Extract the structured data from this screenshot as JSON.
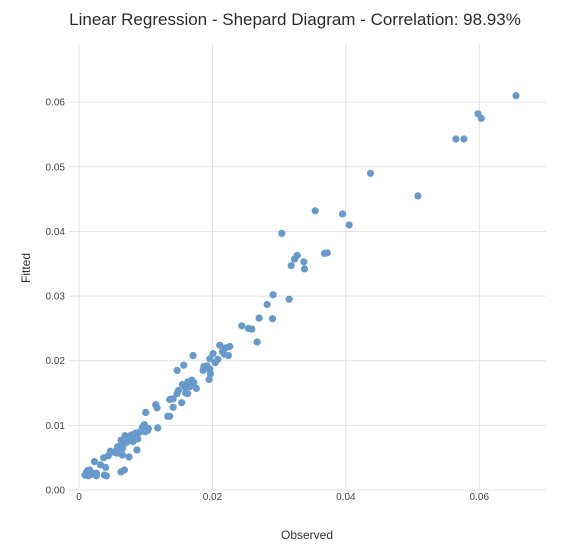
{
  "chart_data": {
    "type": "scatter",
    "title": "Linear Regression - Shepard Diagram - Correlation: 98.93%",
    "xlabel": "Observed",
    "ylabel": "Fitted",
    "xlim": [
      -0.0015,
      0.07
    ],
    "ylim": [
      0,
      0.069
    ],
    "xticks": [
      0,
      0.02,
      0.04,
      0.06
    ],
    "xtick_labels": [
      "0",
      "0.02",
      "0.04",
      "0.06"
    ],
    "yticks": [
      0,
      0.01,
      0.02,
      0.03,
      0.04,
      0.05,
      0.06
    ],
    "ytick_labels": [
      "0.00",
      "0.01",
      "0.02",
      "0.03",
      "0.04",
      "0.05",
      "0.06"
    ],
    "grid": true,
    "marker_color": "#6699cc",
    "points": [
      [
        0.0655,
        0.061
      ],
      [
        0.0598,
        0.0582
      ],
      [
        0.0603,
        0.0575
      ],
      [
        0.0565,
        0.0543
      ],
      [
        0.0577,
        0.0543
      ],
      [
        0.0508,
        0.0455
      ],
      [
        0.0437,
        0.049
      ],
      [
        0.0354,
        0.0432
      ],
      [
        0.0395,
        0.0427
      ],
      [
        0.0405,
        0.041
      ],
      [
        0.0304,
        0.0397
      ],
      [
        0.0327,
        0.0363
      ],
      [
        0.0323,
        0.0357
      ],
      [
        0.0337,
        0.0353
      ],
      [
        0.0318,
        0.0347
      ],
      [
        0.0338,
        0.0342
      ],
      [
        0.0368,
        0.0366
      ],
      [
        0.0372,
        0.0367
      ],
      [
        0.0291,
        0.0302
      ],
      [
        0.0315,
        0.0295
      ],
      [
        0.0282,
        0.0287
      ],
      [
        0.027,
        0.0266
      ],
      [
        0.029,
        0.0265
      ],
      [
        0.0244,
        0.0254
      ],
      [
        0.0254,
        0.025
      ],
      [
        0.0259,
        0.0249
      ],
      [
        0.0267,
        0.0229
      ],
      [
        0.0211,
        0.0224
      ],
      [
        0.022,
        0.022
      ],
      [
        0.0226,
        0.0222
      ],
      [
        0.0215,
        0.0214
      ],
      [
        0.0218,
        0.021
      ],
      [
        0.0224,
        0.0208
      ],
      [
        0.0208,
        0.0202
      ],
      [
        0.0201,
        0.0211
      ],
      [
        0.0196,
        0.0203
      ],
      [
        0.0204,
        0.0197
      ],
      [
        0.0187,
        0.0191
      ],
      [
        0.0192,
        0.0192
      ],
      [
        0.0171,
        0.0208
      ],
      [
        0.0196,
        0.0187
      ],
      [
        0.0186,
        0.0185
      ],
      [
        0.0197,
        0.018
      ],
      [
        0.0157,
        0.0193
      ],
      [
        0.0169,
        0.017
      ],
      [
        0.0195,
        0.0171
      ],
      [
        0.0163,
        0.0167
      ],
      [
        0.0172,
        0.0166
      ],
      [
        0.0147,
        0.0185
      ],
      [
        0.0166,
        0.016
      ],
      [
        0.0176,
        0.0157
      ],
      [
        0.0159,
        0.0158
      ],
      [
        0.0155,
        0.0163
      ],
      [
        0.0149,
        0.0154
      ],
      [
        0.0147,
        0.0149
      ],
      [
        0.016,
        0.015
      ],
      [
        0.0163,
        0.0149
      ],
      [
        0.0141,
        0.0141
      ],
      [
        0.0136,
        0.014
      ],
      [
        0.0154,
        0.0135
      ],
      [
        0.0141,
        0.0128
      ],
      [
        0.0115,
        0.0132
      ],
      [
        0.0117,
        0.0127
      ],
      [
        0.0133,
        0.0114
      ],
      [
        0.0136,
        0.0114
      ],
      [
        0.01,
        0.012
      ],
      [
        0.0098,
        0.0101
      ],
      [
        0.0095,
        0.0097
      ],
      [
        0.0104,
        0.0095
      ],
      [
        0.0118,
        0.0096
      ],
      [
        0.0099,
        0.009
      ],
      [
        0.0103,
        0.0092
      ],
      [
        0.009,
        0.0089
      ],
      [
        0.0085,
        0.0088
      ],
      [
        0.0082,
        0.0086
      ],
      [
        0.0078,
        0.0085
      ],
      [
        0.0069,
        0.0084
      ],
      [
        0.0074,
        0.008
      ],
      [
        0.0063,
        0.0077
      ],
      [
        0.0088,
        0.0079
      ],
      [
        0.0081,
        0.0075
      ],
      [
        0.0072,
        0.0074
      ],
      [
        0.0067,
        0.0071
      ],
      [
        0.0061,
        0.0067
      ],
      [
        0.0058,
        0.0067
      ],
      [
        0.0065,
        0.0064
      ],
      [
        0.0087,
        0.0062
      ],
      [
        0.0056,
        0.0061
      ],
      [
        0.0047,
        0.006
      ],
      [
        0.0053,
        0.0058
      ],
      [
        0.0057,
        0.0057
      ],
      [
        0.0065,
        0.0054
      ],
      [
        0.0044,
        0.0053
      ],
      [
        0.0075,
        0.0051
      ],
      [
        0.0037,
        0.005
      ],
      [
        0.0023,
        0.0044
      ],
      [
        0.0032,
        0.0039
      ],
      [
        0.004,
        0.0035
      ],
      [
        0.0016,
        0.0031
      ],
      [
        0.0013,
        0.003
      ],
      [
        0.0018,
        0.0028
      ],
      [
        0.0011,
        0.0027
      ],
      [
        0.002,
        0.0026
      ],
      [
        0.0026,
        0.0026
      ],
      [
        0.0068,
        0.0031
      ],
      [
        0.0063,
        0.0028
      ],
      [
        0.0018,
        0.0024
      ],
      [
        0.0009,
        0.0023
      ],
      [
        0.0014,
        0.0022
      ],
      [
        0.0026,
        0.0022
      ],
      [
        0.0038,
        0.0023
      ],
      [
        0.0041,
        0.0022
      ]
    ]
  }
}
